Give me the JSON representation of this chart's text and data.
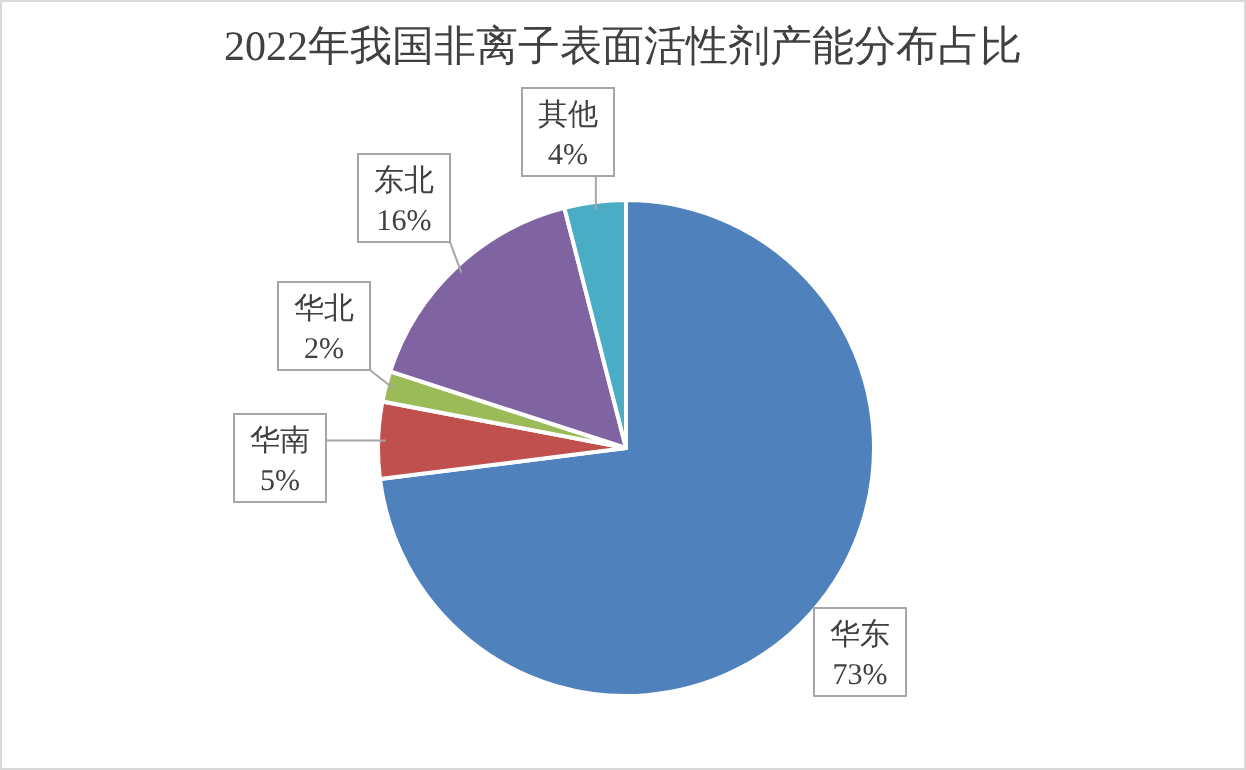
{
  "chart_data": {
    "type": "pie",
    "title": "2022年我国非离子表面活性剂产能分布占比",
    "categories": [
      "华东",
      "华南",
      "华北",
      "东北",
      "其他"
    ],
    "values": [
      73,
      5,
      2,
      16,
      4
    ],
    "colors": [
      "#4f81bd",
      "#c0504d",
      "#9bbb59",
      "#8064a2",
      "#4bacc6"
    ],
    "value_labels": [
      "73%",
      "5%",
      "2%",
      "16%",
      "4%"
    ]
  }
}
